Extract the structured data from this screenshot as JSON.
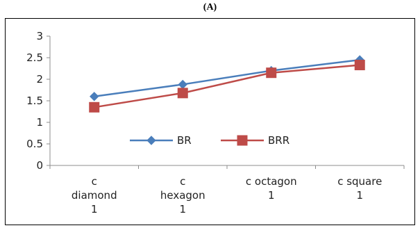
{
  "panel_label": "(A)",
  "chart_data": {
    "type": "line",
    "title": "",
    "xlabel": "",
    "ylabel": "",
    "categories": [
      [
        "c",
        "diamond",
        "1"
      ],
      [
        "c",
        "hexagon",
        "1"
      ],
      [
        "c octagon",
        "1"
      ],
      [
        "c square",
        "1"
      ]
    ],
    "yticks": [
      "0",
      "0.5",
      "1",
      "1.5",
      "2",
      "2.5",
      "3"
    ],
    "ylim": [
      0,
      3
    ],
    "grid": false,
    "legend_position": "bottom-right",
    "series": [
      {
        "name": "BR",
        "color": "#4a7ebb",
        "marker": "diamond",
        "values": [
          1.6,
          1.88,
          2.2,
          2.45
        ]
      },
      {
        "name": "BRR",
        "color": "#be4b48",
        "marker": "square",
        "values": [
          1.35,
          1.68,
          2.15,
          2.33
        ]
      }
    ]
  }
}
